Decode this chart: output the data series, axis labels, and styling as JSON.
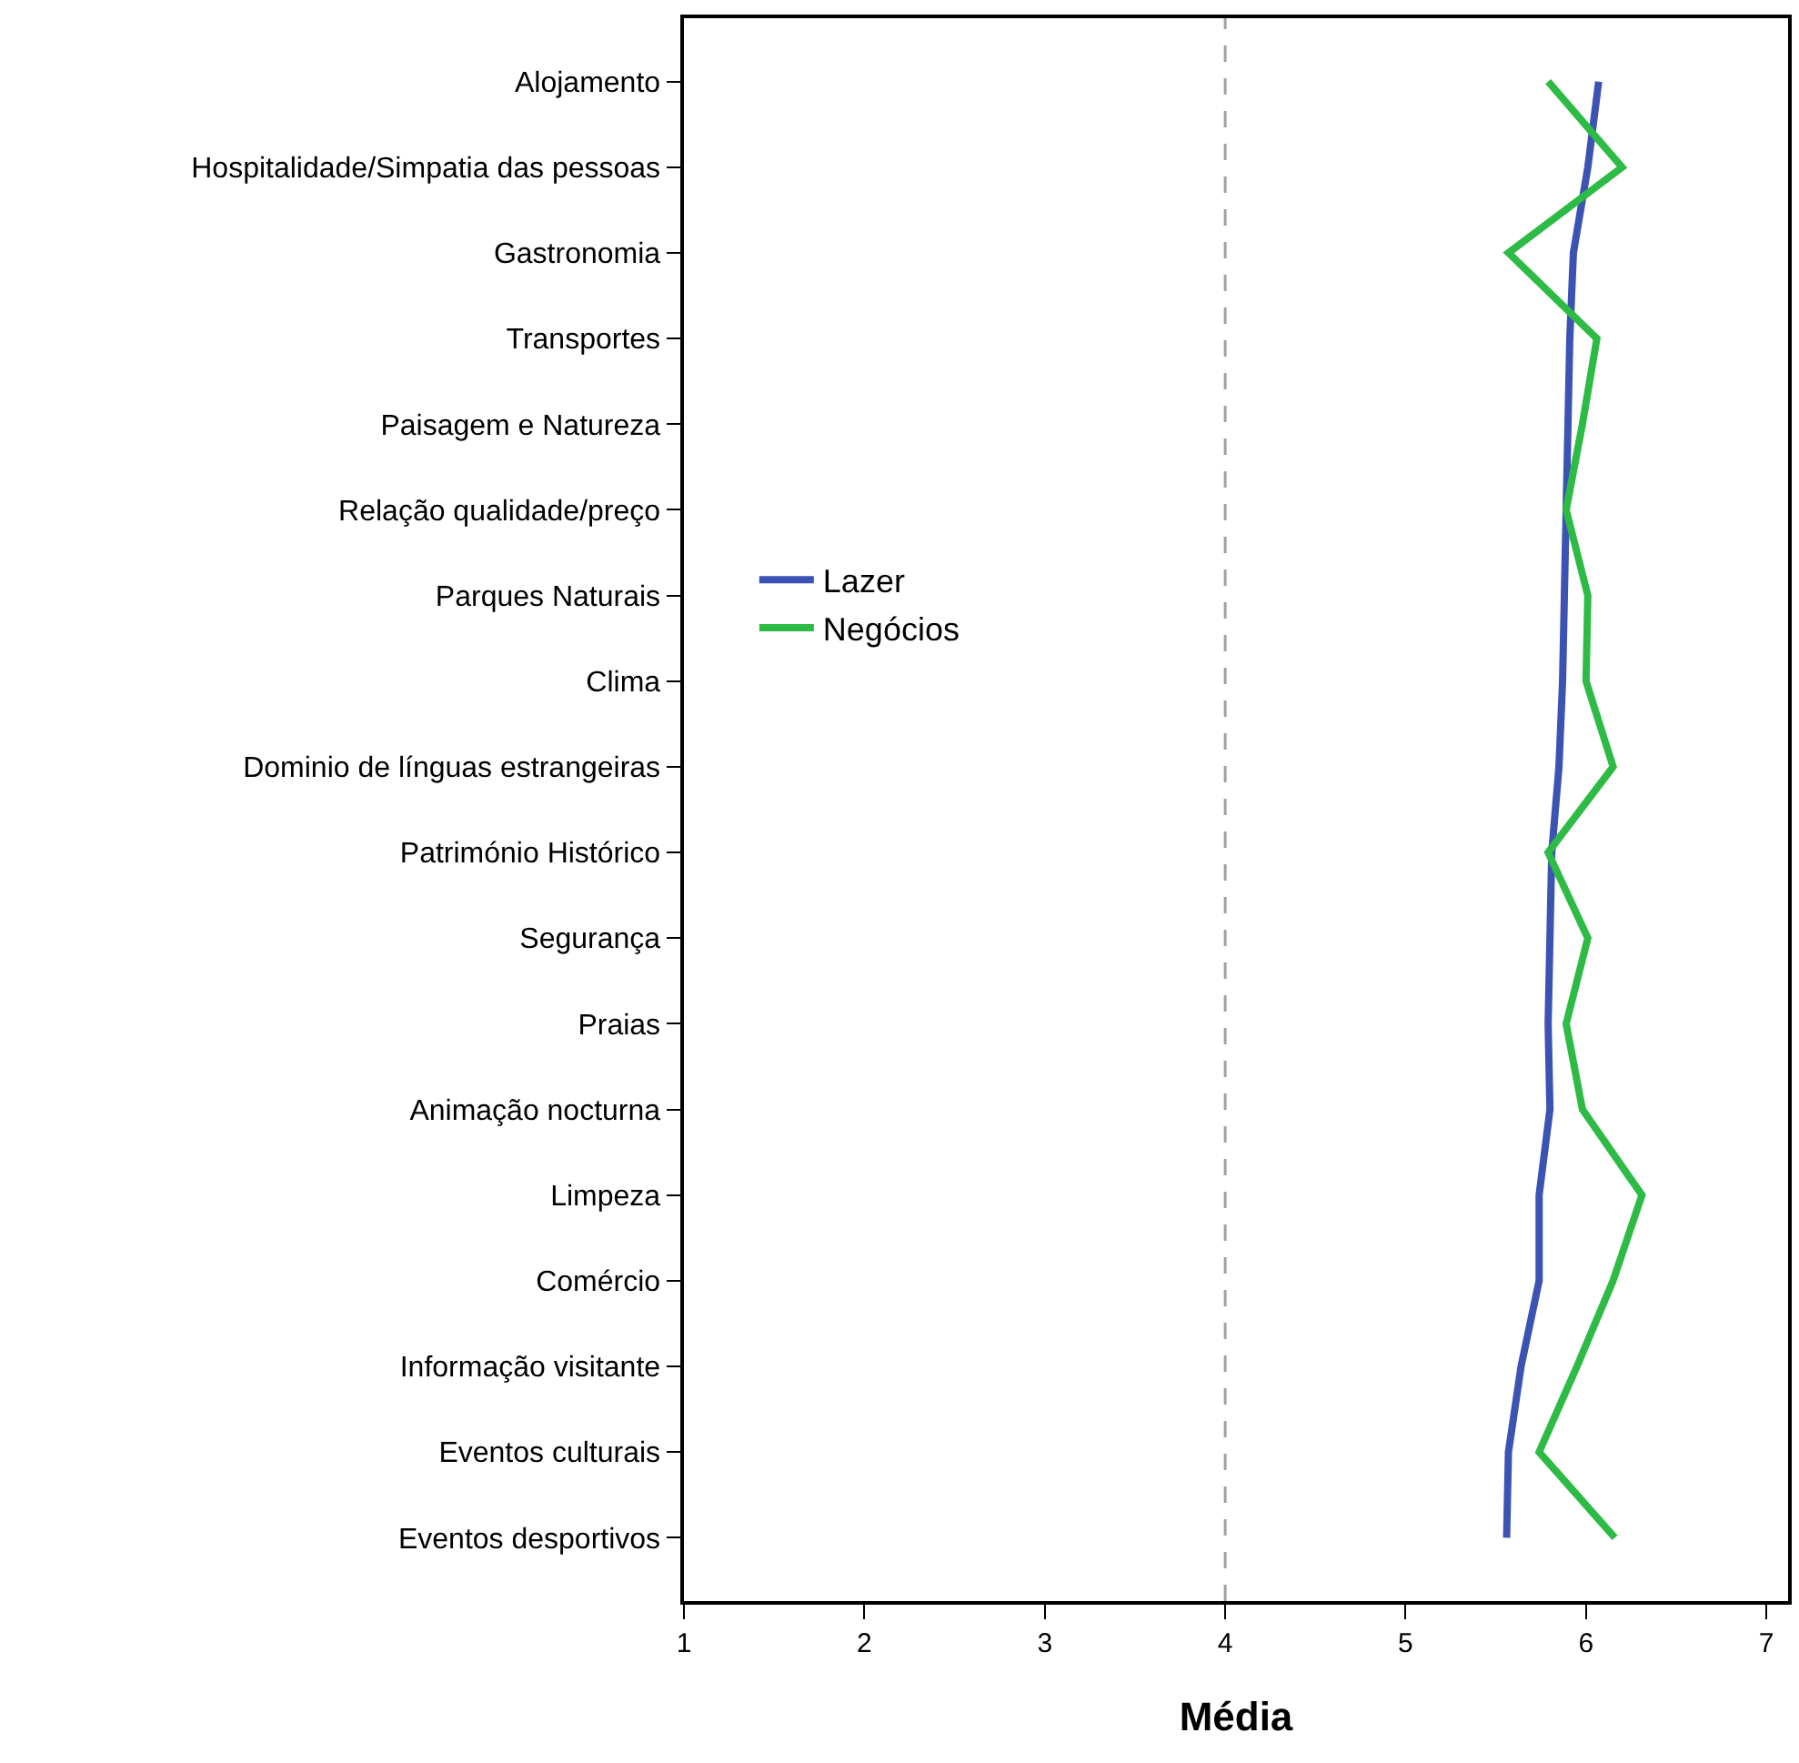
{
  "chart_data": {
    "type": "line",
    "orientation": "horizontal",
    "xlabel": "Média",
    "categories": [
      "Alojamento",
      "Hospitalidade/Simpatia das pessoas",
      "Gastronomia",
      "Transportes",
      "Paisagem e Natureza",
      "Relação qualidade/preço",
      "Parques Naturais",
      "Clima",
      "Dominio de línguas estrangeiras",
      "Património Histórico",
      "Segurança",
      "Praias",
      "Animação nocturna",
      "Limpeza",
      "Comércio",
      "Informação visitante",
      "Eventos culturais",
      "Eventos desportivos"
    ],
    "series": [
      {
        "name": "Lazer",
        "color": "#3c53b4",
        "values": [
          6.07,
          6.01,
          5.93,
          5.91,
          5.9,
          5.89,
          5.88,
          5.87,
          5.85,
          5.81,
          5.8,
          5.79,
          5.8,
          5.74,
          5.74,
          5.64,
          5.57,
          5.56
        ]
      },
      {
        "name": "Negócios",
        "color": "#2dbb45",
        "values": [
          5.79,
          6.2,
          5.57,
          6.06,
          5.98,
          5.89,
          6.01,
          6.0,
          6.15,
          5.79,
          6.01,
          5.89,
          5.98,
          6.31,
          6.15,
          5.95,
          5.74,
          6.16
        ]
      }
    ],
    "xlim": [
      1,
      7.12
    ],
    "xticks": [
      1,
      2,
      3,
      4,
      5,
      6,
      7
    ],
    "ref_lines": [
      {
        "axis": "x",
        "value": 4,
        "color": "#a0a0a0",
        "line_style": "dashed"
      }
    ],
    "grid": false,
    "legend": "left",
    "marker": "none",
    "line_style": "solid"
  }
}
